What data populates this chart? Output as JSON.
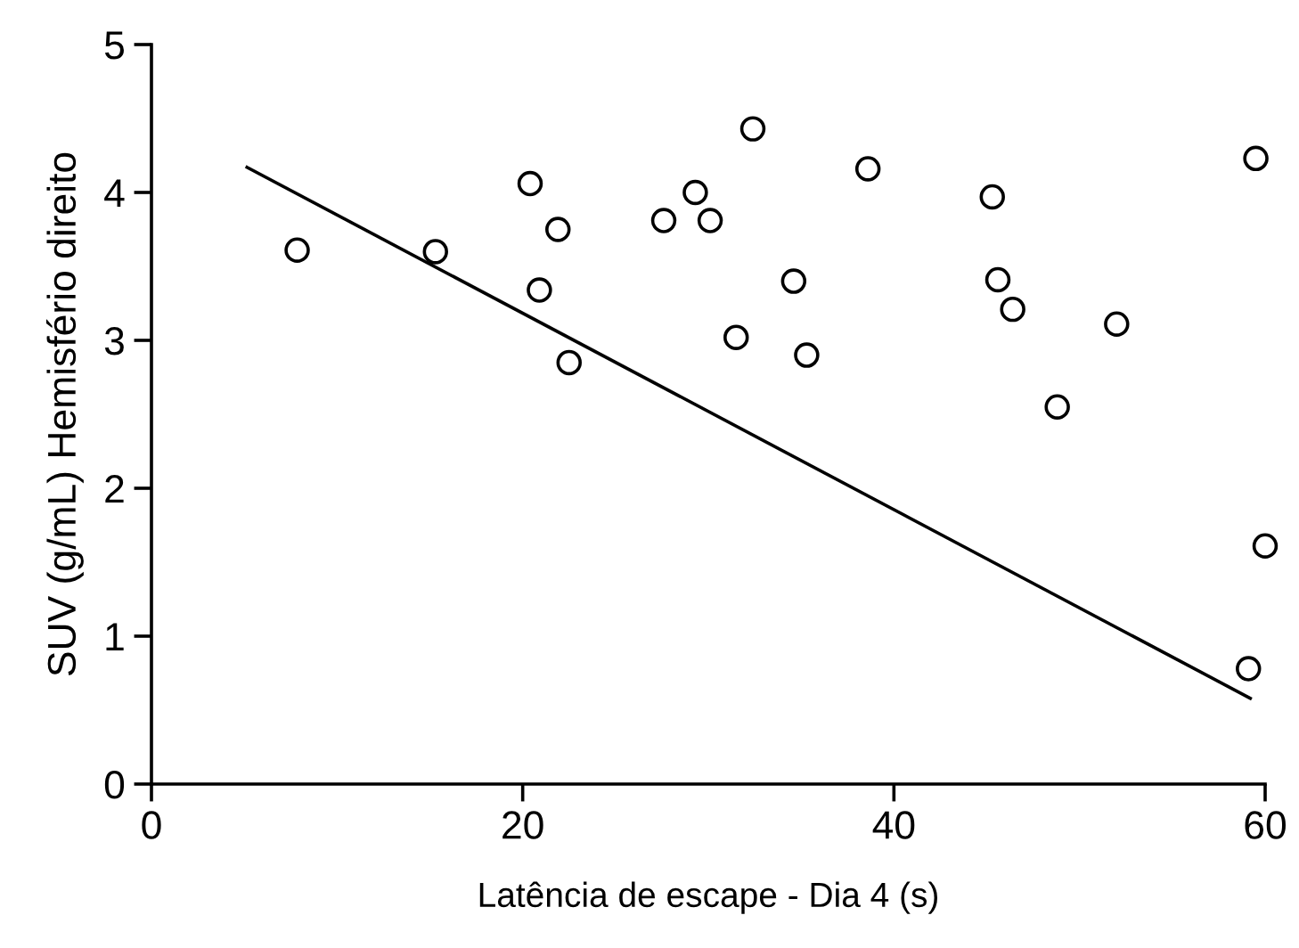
{
  "chart_data": {
    "type": "scatter",
    "xlabel": "Latência de escape - Dia 4 (s)",
    "ylabel": "SUV (g/mL) Hemisfério direito",
    "xlim": [
      0,
      60
    ],
    "xticks": [
      0,
      20,
      40,
      60
    ],
    "ylim": [
      0,
      5
    ],
    "yticks": [
      0,
      1,
      2,
      3,
      4,
      5
    ],
    "grid": false,
    "legend": false,
    "series": [
      {
        "marker": "circle",
        "color": "#000000",
        "x": [
          7.85,
          15.3,
          20.4,
          20.9,
          21.9,
          22.5,
          27.6,
          29.3,
          30.1,
          31.5,
          32.4,
          34.6,
          35.3,
          38.6,
          45.3,
          45.6,
          46.4,
          48.8,
          52.0,
          59.5,
          60.0,
          59.1
        ],
        "values": [
          3.61,
          3.6,
          4.06,
          3.34,
          3.75,
          2.85,
          3.81,
          4.0,
          3.81,
          3.02,
          4.43,
          3.4,
          2.9,
          4.16,
          3.97,
          3.41,
          3.21,
          2.55,
          3.11,
          4.23,
          1.61,
          0.78
        ]
      },
      {
        "type": "line",
        "marker": "none",
        "color": "#000000",
        "x": [
          5.15,
          59.2
        ],
        "values": [
          4.17,
          0.58
        ]
      }
    ]
  }
}
